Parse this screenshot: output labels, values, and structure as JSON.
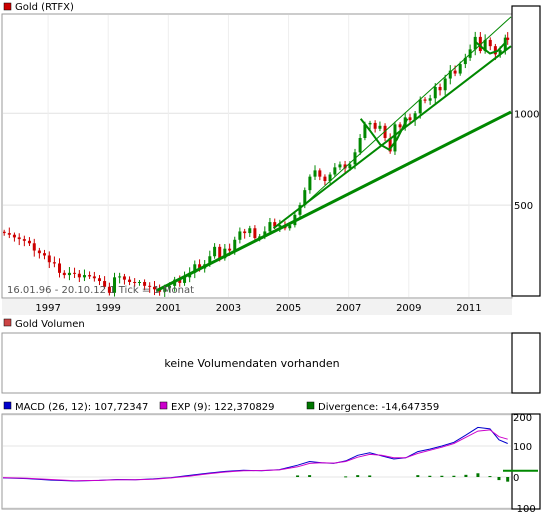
{
  "chart_data": [
    {
      "type": "candlestick",
      "title": "Gold (RTFX)",
      "title_marker_color": "#cc0000",
      "info": "16.01.96 - 20.10.12   1 Tick = 1 Monat",
      "scale": "log",
      "ylim": [
        250,
        2100
      ],
      "y_ticks": [
        500,
        1000
      ],
      "x_tick_labels": [
        "1997",
        "1999",
        "2001",
        "2003",
        "2005",
        "2007",
        "2009",
        "2011"
      ],
      "xlim": [
        1996.0,
        2012.9
      ],
      "up_color": "#008800",
      "down_color": "#cc0000",
      "trendline_color": "#008800",
      "series": [
        {
          "x": 1996.04,
          "y": 405
        },
        {
          "x": 1996.21,
          "y": 400
        },
        {
          "x": 1996.38,
          "y": 392
        },
        {
          "x": 1996.54,
          "y": 387
        },
        {
          "x": 1996.71,
          "y": 382
        },
        {
          "x": 1996.88,
          "y": 375
        },
        {
          "x": 1997.04,
          "y": 355
        },
        {
          "x": 1997.21,
          "y": 348
        },
        {
          "x": 1997.38,
          "y": 342
        },
        {
          "x": 1997.54,
          "y": 325
        },
        {
          "x": 1997.71,
          "y": 322
        },
        {
          "x": 1997.88,
          "y": 300
        },
        {
          "x": 1998.04,
          "y": 295
        },
        {
          "x": 1998.21,
          "y": 300
        },
        {
          "x": 1998.38,
          "y": 298
        },
        {
          "x": 1998.54,
          "y": 290
        },
        {
          "x": 1998.71,
          "y": 295
        },
        {
          "x": 1998.88,
          "y": 292
        },
        {
          "x": 1999.04,
          "y": 288
        },
        {
          "x": 1999.21,
          "y": 282
        },
        {
          "x": 1999.38,
          "y": 270
        },
        {
          "x": 1999.54,
          "y": 258
        },
        {
          "x": 1999.71,
          "y": 290
        },
        {
          "x": 1999.88,
          "y": 292
        },
        {
          "x": 2000.04,
          "y": 285
        },
        {
          "x": 2000.21,
          "y": 280
        },
        {
          "x": 2000.38,
          "y": 278
        },
        {
          "x": 2000.54,
          "y": 280
        },
        {
          "x": 2000.71,
          "y": 272
        },
        {
          "x": 2000.88,
          "y": 270
        },
        {
          "x": 2001.04,
          "y": 265
        },
        {
          "x": 2001.21,
          "y": 260
        },
        {
          "x": 2001.38,
          "y": 268
        },
        {
          "x": 2001.54,
          "y": 272
        },
        {
          "x": 2001.71,
          "y": 285
        },
        {
          "x": 2001.88,
          "y": 278
        },
        {
          "x": 2002.04,
          "y": 290
        },
        {
          "x": 2002.21,
          "y": 300
        },
        {
          "x": 2002.38,
          "y": 320
        },
        {
          "x": 2002.54,
          "y": 310
        },
        {
          "x": 2002.71,
          "y": 320
        },
        {
          "x": 2002.88,
          "y": 340
        },
        {
          "x": 2003.04,
          "y": 365
        },
        {
          "x": 2003.21,
          "y": 335
        },
        {
          "x": 2003.38,
          "y": 360
        },
        {
          "x": 2003.54,
          "y": 355
        },
        {
          "x": 2003.71,
          "y": 385
        },
        {
          "x": 2003.88,
          "y": 410
        },
        {
          "x": 2004.04,
          "y": 405
        },
        {
          "x": 2004.21,
          "y": 420
        },
        {
          "x": 2004.38,
          "y": 390
        },
        {
          "x": 2004.54,
          "y": 395
        },
        {
          "x": 2004.71,
          "y": 410
        },
        {
          "x": 2004.88,
          "y": 440
        },
        {
          "x": 2005.04,
          "y": 425
        },
        {
          "x": 2005.21,
          "y": 430
        },
        {
          "x": 2005.38,
          "y": 420
        },
        {
          "x": 2005.54,
          "y": 430
        },
        {
          "x": 2005.71,
          "y": 465
        },
        {
          "x": 2005.88,
          "y": 500
        },
        {
          "x": 2006.04,
          "y": 560
        },
        {
          "x": 2006.21,
          "y": 620
        },
        {
          "x": 2006.38,
          "y": 650
        },
        {
          "x": 2006.54,
          "y": 620
        },
        {
          "x": 2006.71,
          "y": 600
        },
        {
          "x": 2006.88,
          "y": 630
        },
        {
          "x": 2007.04,
          "y": 665
        },
        {
          "x": 2007.21,
          "y": 680
        },
        {
          "x": 2007.38,
          "y": 660
        },
        {
          "x": 2007.54,
          "y": 680
        },
        {
          "x": 2007.71,
          "y": 745
        },
        {
          "x": 2007.88,
          "y": 830
        },
        {
          "x": 2008.04,
          "y": 920
        },
        {
          "x": 2008.21,
          "y": 930
        },
        {
          "x": 2008.38,
          "y": 890
        },
        {
          "x": 2008.54,
          "y": 910
        },
        {
          "x": 2008.71,
          "y": 830
        },
        {
          "x": 2008.88,
          "y": 750
        },
        {
          "x": 2009.04,
          "y": 920
        },
        {
          "x": 2009.21,
          "y": 900
        },
        {
          "x": 2009.38,
          "y": 970
        },
        {
          "x": 2009.54,
          "y": 950
        },
        {
          "x": 2009.71,
          "y": 1000
        },
        {
          "x": 2009.88,
          "y": 1110
        },
        {
          "x": 2010.04,
          "y": 1100
        },
        {
          "x": 2010.21,
          "y": 1120
        },
        {
          "x": 2010.38,
          "y": 1220
        },
        {
          "x": 2010.54,
          "y": 1190
        },
        {
          "x": 2010.71,
          "y": 1300
        },
        {
          "x": 2010.88,
          "y": 1380
        },
        {
          "x": 2011.04,
          "y": 1350
        },
        {
          "x": 2011.21,
          "y": 1450
        },
        {
          "x": 2011.38,
          "y": 1520
        },
        {
          "x": 2011.54,
          "y": 1620
        },
        {
          "x": 2011.71,
          "y": 1780
        },
        {
          "x": 2011.88,
          "y": 1600
        },
        {
          "x": 2012.04,
          "y": 1740
        },
        {
          "x": 2012.21,
          "y": 1660
        },
        {
          "x": 2012.38,
          "y": 1560
        },
        {
          "x": 2012.54,
          "y": 1610
        },
        {
          "x": 2012.71,
          "y": 1770
        },
        {
          "x": 2012.79,
          "y": 1740
        }
      ],
      "trendlines": [
        {
          "x": [
            2001.1,
            2012.9
          ],
          "y": [
            262,
            1010
          ],
          "width": 3
        },
        {
          "x": [
            2005.0,
            2012.9
          ],
          "y": [
            420,
            1660
          ],
          "width": 2
        },
        {
          "x": [
            2005.8,
            2012.9
          ],
          "y": [
            480,
            2070
          ],
          "width": 1
        }
      ],
      "arcs": [
        {
          "x": [
            2007.9,
            2008.2,
            2008.55,
            2008.85,
            2009.1,
            2009.45
          ],
          "y": [
            960,
            880,
            790,
            760,
            820,
            960
          ]
        },
        {
          "x": [
            2011.7,
            2011.95,
            2012.2,
            2012.45,
            2012.7
          ],
          "y": [
            1720,
            1640,
            1570,
            1600,
            1700
          ]
        }
      ]
    },
    {
      "type": "bar",
      "title": "Gold Volumen",
      "title_marker_color": "#cc4444",
      "message": "keine Volumendaten vorhanden"
    },
    {
      "type": "line",
      "y_ticks": [
        200,
        100,
        0,
        -100
      ],
      "ylim": [
        -100,
        200
      ],
      "xlim": [
        1996.0,
        2012.9
      ],
      "legend": [
        {
          "label": "MACD (26, 12): 107,72347",
          "color": "#0000cc"
        },
        {
          "label": "EXP (9): 122,370829",
          "color": "#cc00cc"
        },
        {
          "label": "Divergence: -14,647359",
          "color": "#007700"
        }
      ],
      "signal_level": 20,
      "signal_color": "#008800",
      "series": [
        {
          "name": "MACD",
          "color": "#0000cc",
          "x": [
            1996.0,
            1996.8,
            1997.6,
            1998.4,
            1999.2,
            1999.8,
            2000.4,
            2001.0,
            2001.6,
            2002.2,
            2002.8,
            2003.4,
            2004.0,
            2004.6,
            2005.2,
            2005.8,
            2006.2,
            2006.6,
            2007.0,
            2007.4,
            2007.8,
            2008.2,
            2008.6,
            2009.0,
            2009.4,
            2009.8,
            2010.2,
            2010.6,
            2011.0,
            2011.4,
            2011.8,
            2012.2,
            2012.5,
            2012.79
          ],
          "y": [
            -3,
            -5,
            -10,
            -13,
            -11,
            -8,
            -9,
            -6,
            -2,
            5,
            12,
            18,
            22,
            20,
            24,
            38,
            50,
            46,
            44,
            52,
            70,
            78,
            68,
            58,
            62,
            82,
            90,
            100,
            112,
            135,
            160,
            155,
            120,
            108
          ]
        },
        {
          "name": "EXP",
          "color": "#cc00cc",
          "x": [
            1996.0,
            1996.8,
            1997.6,
            1998.4,
            1999.2,
            1999.8,
            2000.4,
            2001.0,
            2001.6,
            2002.2,
            2002.8,
            2003.4,
            2004.0,
            2004.6,
            2005.2,
            2005.8,
            2006.2,
            2006.6,
            2007.0,
            2007.4,
            2007.8,
            2008.2,
            2008.6,
            2009.0,
            2009.4,
            2009.8,
            2010.2,
            2010.6,
            2011.0,
            2011.4,
            2011.8,
            2012.2,
            2012.5,
            2012.79
          ],
          "y": [
            -2,
            -4,
            -8,
            -12,
            -11,
            -9,
            -9,
            -7,
            -3,
            3,
            10,
            16,
            20,
            21,
            23,
            33,
            44,
            46,
            45,
            50,
            64,
            73,
            70,
            62,
            62,
            76,
            86,
            96,
            108,
            128,
            148,
            152,
            130,
            122
          ]
        },
        {
          "name": "Divergence",
          "color": "#007700",
          "type": "bar",
          "x": [
            2005.8,
            2006.2,
            2007.4,
            2007.8,
            2008.2,
            2009.8,
            2010.2,
            2010.6,
            2011.0,
            2011.4,
            2011.8,
            2012.2,
            2012.5,
            2012.79
          ],
          "y": [
            5,
            6,
            2,
            6,
            5,
            6,
            4,
            4,
            4,
            7,
            12,
            3,
            -10,
            -15
          ]
        }
      ]
    }
  ]
}
